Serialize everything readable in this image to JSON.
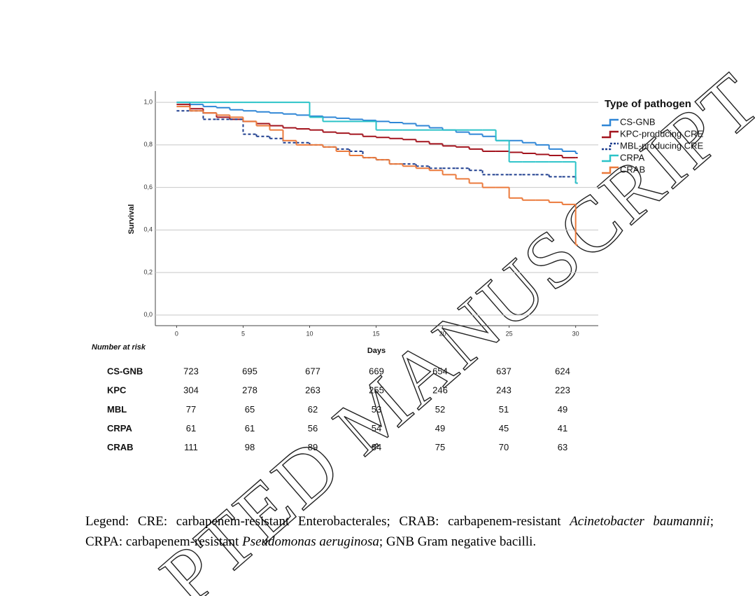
{
  "chart_data": {
    "type": "line",
    "step": true,
    "legend_title": "Type of pathogen",
    "legend_position": "right",
    "xlabel": "Days",
    "ylabel": "Survival",
    "x": [
      0,
      1,
      2,
      3,
      4,
      5,
      6,
      7,
      8,
      9,
      10,
      11,
      12,
      13,
      14,
      15,
      16,
      17,
      18,
      19,
      20,
      21,
      22,
      23,
      24,
      25,
      26,
      27,
      28,
      29,
      30
    ],
    "series": [
      {
        "name": "CS-GNB",
        "color": "#2f86d6",
        "dash": false,
        "values": [
          1.0,
          0.99,
          0.98,
          0.975,
          0.965,
          0.96,
          0.955,
          0.95,
          0.945,
          0.94,
          0.935,
          0.93,
          0.925,
          0.92,
          0.915,
          0.91,
          0.905,
          0.9,
          0.89,
          0.88,
          0.87,
          0.86,
          0.85,
          0.84,
          0.82,
          0.82,
          0.81,
          0.8,
          0.78,
          0.77,
          0.76
        ]
      },
      {
        "name": "KPC-producing CRE",
        "color": "#a3141e",
        "dash": false,
        "values": [
          0.99,
          0.97,
          0.95,
          0.93,
          0.92,
          0.91,
          0.9,
          0.89,
          0.88,
          0.875,
          0.87,
          0.86,
          0.855,
          0.85,
          0.84,
          0.835,
          0.83,
          0.825,
          0.815,
          0.805,
          0.795,
          0.79,
          0.78,
          0.77,
          0.77,
          0.765,
          0.76,
          0.755,
          0.75,
          0.74,
          0.74
        ]
      },
      {
        "name": "MBL-producing CRE",
        "color": "#1f3f8f",
        "dash": true,
        "values": [
          0.96,
          0.96,
          0.92,
          0.92,
          0.92,
          0.85,
          0.84,
          0.83,
          0.81,
          0.81,
          0.8,
          0.79,
          0.78,
          0.77,
          0.74,
          0.73,
          0.71,
          0.71,
          0.7,
          0.69,
          0.69,
          0.69,
          0.68,
          0.66,
          0.66,
          0.66,
          0.66,
          0.66,
          0.65,
          0.65,
          0.62
        ]
      },
      {
        "name": "CRPA",
        "color": "#2cc3c8",
        "dash": false,
        "values": [
          1.0,
          1.0,
          1.0,
          1.0,
          1.0,
          1.0,
          1.0,
          1.0,
          1.0,
          1.0,
          0.93,
          0.91,
          0.91,
          0.91,
          0.91,
          0.87,
          0.87,
          0.87,
          0.87,
          0.87,
          0.87,
          0.87,
          0.87,
          0.87,
          0.82,
          0.72,
          0.72,
          0.72,
          0.72,
          0.72,
          0.62
        ]
      },
      {
        "name": "CRAB",
        "color": "#eb7a3c",
        "dash": false,
        "values": [
          0.98,
          0.96,
          0.95,
          0.94,
          0.93,
          0.91,
          0.89,
          0.87,
          0.82,
          0.8,
          0.8,
          0.79,
          0.77,
          0.75,
          0.74,
          0.73,
          0.71,
          0.7,
          0.69,
          0.68,
          0.66,
          0.64,
          0.62,
          0.6,
          0.6,
          0.55,
          0.54,
          0.54,
          0.53,
          0.52,
          0.33
        ]
      }
    ],
    "xlim": [
      -1.6,
      31.7
    ],
    "xticks": [
      0,
      5,
      10,
      15,
      20,
      25,
      30
    ],
    "ylim": [
      -0.05,
      1.053
    ],
    "yticks": [
      {
        "value": 0,
        "label": "0,0"
      },
      {
        "value": 0.2,
        "label": "0,2"
      },
      {
        "value": 0.4,
        "label": "0,4"
      },
      {
        "value": 0.6,
        "label": "0,6"
      },
      {
        "value": 0.8,
        "label": "0,8"
      },
      {
        "value": 1,
        "label": "1,0"
      }
    ],
    "grid": true
  },
  "risk_table": {
    "title": "Number at risk",
    "rows": [
      {
        "label": "CS-GNB",
        "values": [
          723,
          695,
          677,
          669,
          654,
          637,
          624
        ]
      },
      {
        "label": "KPC",
        "values": [
          304,
          278,
          263,
          255,
          246,
          243,
          223
        ]
      },
      {
        "label": "MBL",
        "values": [
          77,
          65,
          62,
          53,
          52,
          51,
          49
        ]
      },
      {
        "label": "CRPA",
        "values": [
          61,
          61,
          56,
          54,
          49,
          45,
          41
        ]
      },
      {
        "label": "CRAB",
        "values": [
          111,
          98,
          89,
          84,
          75,
          70,
          63
        ]
      }
    ]
  },
  "caption": {
    "parts": [
      {
        "text": "Legend: CRE: carbapenem-resistant Enterobacterales; CRAB: carbapenem-resistant ",
        "italic": false
      },
      {
        "text": "Acinetobacter baumannii",
        "italic": true
      },
      {
        "text": "; CRPA: carbapenem-resistant ",
        "italic": false
      },
      {
        "text": "Pseudomonas aeruginosa",
        "italic": true
      },
      {
        "text": "; GNB Gram negative bacilli.",
        "italic": false
      }
    ]
  },
  "watermark": "PTED MANUSCRIPT"
}
